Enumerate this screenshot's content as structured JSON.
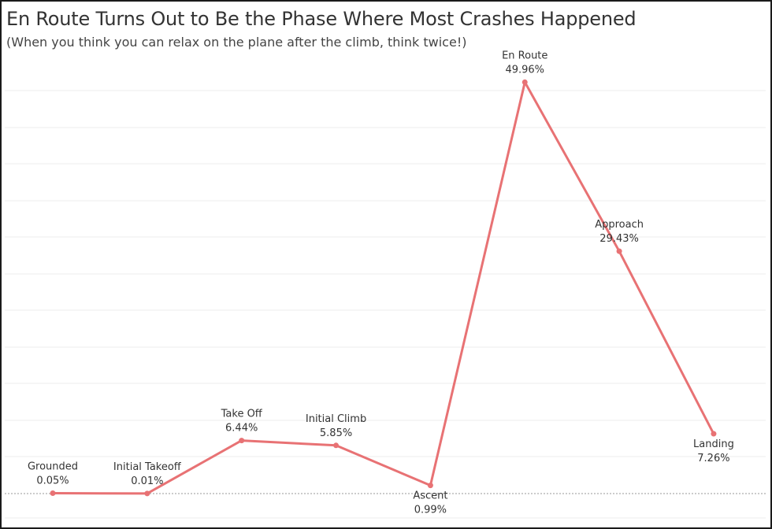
{
  "colors": {
    "line": "#e87274",
    "marker": "#e87274"
  },
  "chart_data": {
    "type": "line",
    "title": "En Route Turns Out to Be the Phase Where Most Crashes Happened",
    "subtitle": "(When you think you can relax on the plane after the climb, think twice!)",
    "xlabel": "",
    "ylabel": "",
    "grid": true,
    "ylim": [
      0,
      55
    ],
    "categories": [
      "Grounded",
      "Initial Takeoff",
      "Take Off",
      "Initial Climb",
      "Ascent",
      "En Route",
      "Approach",
      "Landing"
    ],
    "values": [
      0.05,
      0.01,
      6.44,
      5.85,
      0.99,
      49.96,
      29.43,
      7.26
    ],
    "data_labels": [
      "0.05%",
      "0.01%",
      "6.44%",
      "5.85%",
      "0.99%",
      "49.96%",
      "29.43%",
      "7.26%"
    ]
  }
}
